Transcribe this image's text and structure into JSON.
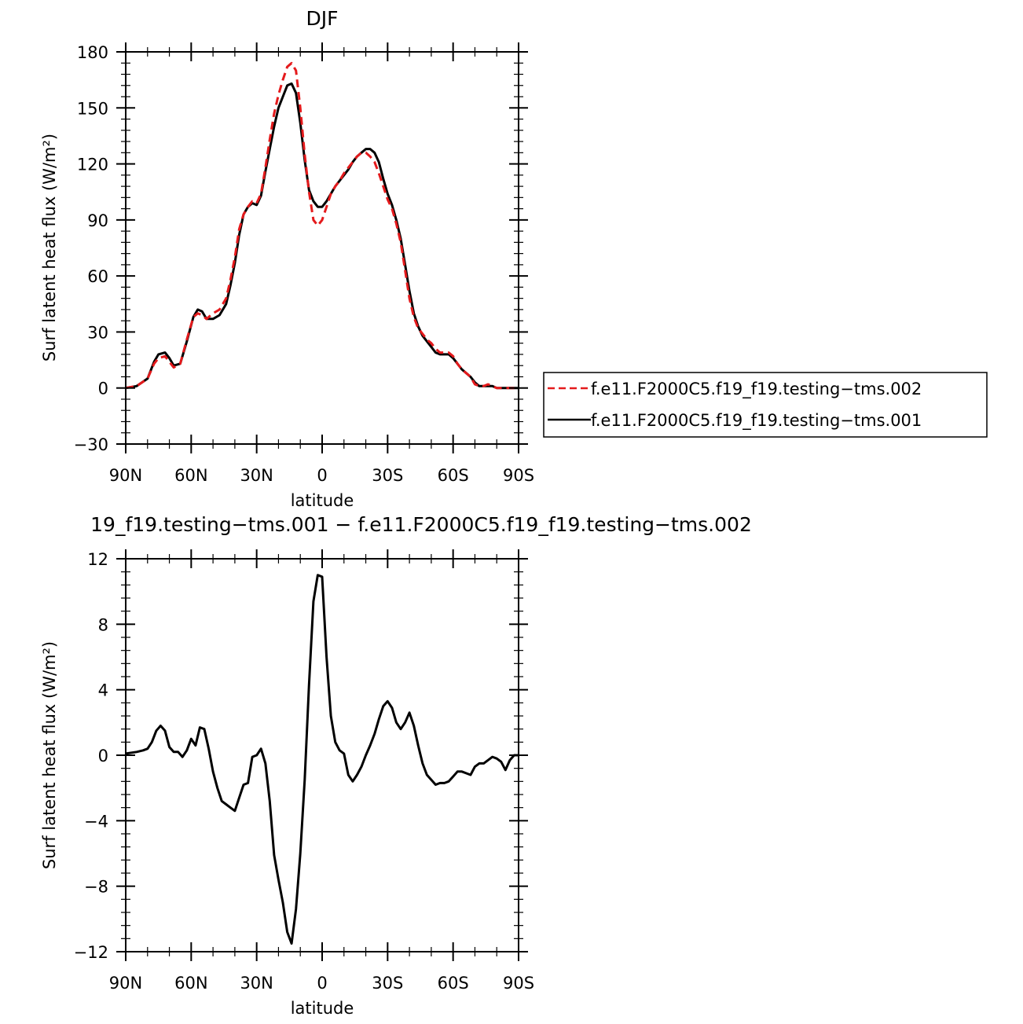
{
  "chart_data": [
    {
      "type": "line",
      "title": "DJF",
      "xlabel": "latitude",
      "ylabel": "Surf latent heat flux (W/m²)",
      "xlim": [
        -90,
        90
      ],
      "ylim": [
        -30,
        180
      ],
      "xticks": [
        "90N",
        "60N",
        "30N",
        "0",
        "30S",
        "60S",
        "90S"
      ],
      "yticks": [
        "−30",
        "0",
        "30",
        "60",
        "90",
        "120",
        "150",
        "180"
      ],
      "legend_position": "right",
      "series": [
        {
          "name": "f.e11.F2000C5.f19_f19.testing−tms.002",
          "color": "#e41a1c",
          "dash": "dashed",
          "x": [
            -90,
            -85,
            -80,
            -77,
            -75,
            -72,
            -70,
            -68,
            -65,
            -62,
            -59,
            -57,
            -55,
            -53,
            -50,
            -47,
            -44,
            -42,
            -40,
            -38,
            -36,
            -34,
            -32,
            -30,
            -28,
            -26,
            -24,
            -22,
            -20,
            -18,
            -16,
            -14,
            -12,
            -10,
            -8,
            -6,
            -4,
            -2,
            0,
            2,
            4,
            6,
            8,
            10,
            12,
            14,
            16,
            18,
            20,
            22,
            24,
            26,
            28,
            30,
            32,
            34,
            36,
            38,
            40,
            42,
            44,
            46,
            48,
            50,
            52,
            54,
            56,
            58,
            60,
            62,
            64,
            66,
            68,
            70,
            72,
            74,
            76,
            78,
            80,
            82,
            84,
            86,
            88,
            90
          ],
          "y": [
            0,
            1,
            5,
            13,
            16,
            17,
            14,
            11,
            13,
            26,
            38,
            40,
            39,
            37,
            40,
            42,
            48,
            58,
            70,
            85,
            93,
            97,
            100,
            99,
            104,
            118,
            133,
            147,
            157,
            165,
            172,
            174,
            170,
            150,
            125,
            105,
            90,
            87,
            90,
            97,
            104,
            108,
            111,
            115,
            118,
            121,
            124,
            126,
            126,
            124,
            121,
            115,
            108,
            101,
            96,
            88,
            78,
            63,
            48,
            38,
            32,
            29,
            26,
            24,
            21,
            19,
            19,
            19,
            17,
            13,
            10,
            8,
            6,
            2,
            1,
            1,
            2,
            1,
            0,
            0,
            0,
            0,
            0,
            0
          ]
        },
        {
          "name": "f.e11.F2000C5.f19_f19.testing−tms.001",
          "color": "#000000",
          "dash": "solid",
          "x": [
            -90,
            -85,
            -80,
            -77,
            -75,
            -72,
            -70,
            -68,
            -65,
            -62,
            -59,
            -57,
            -55,
            -53,
            -50,
            -47,
            -44,
            -42,
            -40,
            -38,
            -36,
            -34,
            -32,
            -30,
            -28,
            -26,
            -24,
            -22,
            -20,
            -18,
            -16,
            -14,
            -12,
            -10,
            -8,
            -6,
            -4,
            -2,
            0,
            2,
            4,
            6,
            8,
            10,
            12,
            14,
            16,
            18,
            20,
            22,
            24,
            26,
            28,
            30,
            32,
            34,
            36,
            38,
            40,
            42,
            44,
            46,
            48,
            50,
            52,
            54,
            56,
            58,
            60,
            62,
            64,
            66,
            68,
            70,
            72,
            74,
            76,
            78,
            80,
            82,
            84,
            86,
            88,
            90
          ],
          "y": [
            0,
            1,
            5,
            14,
            18,
            19,
            16,
            12,
            13,
            25,
            38,
            42,
            41,
            37,
            37,
            39,
            45,
            55,
            67,
            82,
            93,
            97,
            99,
            98,
            103,
            116,
            128,
            140,
            150,
            156,
            162,
            163,
            158,
            142,
            122,
            106,
            100,
            97,
            97,
            100,
            104,
            108,
            111,
            114,
            117,
            121,
            124,
            126,
            128,
            128,
            126,
            121,
            112,
            104,
            98,
            90,
            80,
            66,
            52,
            40,
            33,
            28,
            25,
            22,
            19,
            18,
            18,
            18,
            16,
            13,
            10,
            8,
            6,
            3,
            1,
            1,
            1,
            1,
            0,
            0,
            0,
            0,
            0,
            0
          ]
        }
      ]
    },
    {
      "type": "line",
      "title": "19_f19.testing−tms.001 − f.e11.F2000C5.f19_f19.testing−tms.002",
      "xlabel": "latitude",
      "ylabel": "Surf latent heat flux (W/m²)",
      "xlim": [
        -90,
        90
      ],
      "ylim": [
        -12,
        12
      ],
      "xticks": [
        "90N",
        "60N",
        "30N",
        "0",
        "30S",
        "60S",
        "90S"
      ],
      "yticks": [
        "−12",
        "−8",
        "−4",
        "0",
        "4",
        "8",
        "12"
      ],
      "series": [
        {
          "name": "",
          "color": "#000000",
          "dash": "solid",
          "x": [
            -90,
            -85,
            -82,
            -80,
            -78,
            -76,
            -74,
            -72,
            -70,
            -68,
            -66,
            -64,
            -62,
            -60,
            -58,
            -56,
            -54,
            -52,
            -50,
            -48,
            -46,
            -44,
            -42,
            -40,
            -38,
            -36,
            -34,
            -32,
            -30,
            -28,
            -26,
            -24,
            -22,
            -20,
            -18,
            -16,
            -14,
            -12,
            -10,
            -8,
            -6,
            -4,
            -2,
            0,
            2,
            4,
            6,
            8,
            10,
            12,
            14,
            16,
            18,
            20,
            22,
            24,
            26,
            28,
            30,
            32,
            34,
            36,
            38,
            40,
            42,
            44,
            46,
            48,
            50,
            52,
            54,
            56,
            58,
            60,
            62,
            64,
            66,
            68,
            70,
            72,
            74,
            76,
            78,
            80,
            82,
            84,
            86,
            88,
            90
          ],
          "y": [
            0.1,
            0.2,
            0.3,
            0.4,
            0.8,
            1.5,
            1.8,
            1.5,
            0.5,
            0.2,
            0.2,
            -0.1,
            0.3,
            1.0,
            0.6,
            1.7,
            1.6,
            0.4,
            -1.0,
            -2.0,
            -2.8,
            -3.0,
            -3.2,
            -3.4,
            -2.6,
            -1.8,
            -1.7,
            -0.1,
            0.0,
            0.4,
            -0.5,
            -2.8,
            -6.1,
            -7.6,
            -9.0,
            -10.8,
            -11.5,
            -9.4,
            -6.0,
            -1.5,
            4.3,
            9.4,
            11.0,
            10.9,
            6.0,
            2.4,
            0.8,
            0.3,
            0.1,
            -1.2,
            -1.6,
            -1.2,
            -0.7,
            0.0,
            0.6,
            1.3,
            2.2,
            3.0,
            3.3,
            2.9,
            2.0,
            1.6,
            2.0,
            2.6,
            1.8,
            0.6,
            -0.5,
            -1.2,
            -1.5,
            -1.8,
            -1.7,
            -1.7,
            -1.6,
            -1.3,
            -1.0,
            -1.0,
            -1.1,
            -1.2,
            -0.7,
            -0.5,
            -0.5,
            -0.3,
            -0.1,
            -0.2,
            -0.4,
            -0.9,
            -0.3,
            0.0,
            0.0
          ]
        }
      ]
    }
  ]
}
